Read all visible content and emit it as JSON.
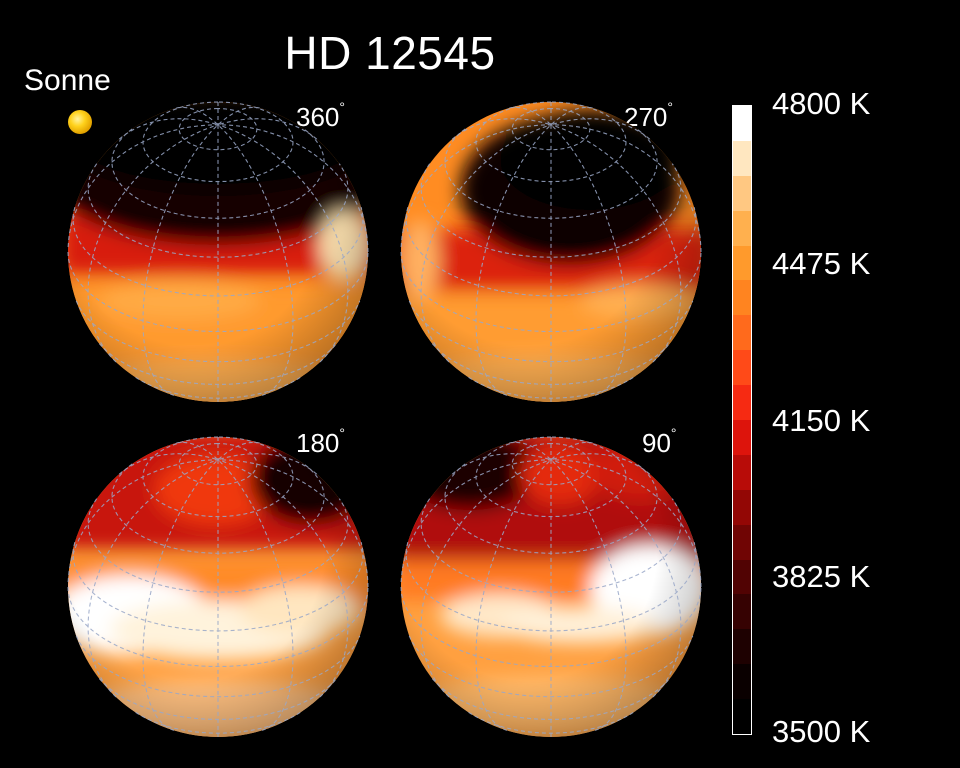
{
  "title": "HD 12545",
  "sun_label": "Sonne",
  "rotation_labels": [
    "360",
    "270",
    "180",
    "90"
  ],
  "degree_symbol": "°",
  "colorbar": {
    "tick_labels": [
      "4800 K",
      "4475 K",
      "4150 K",
      "3825 K",
      "3500 K"
    ],
    "colors_top_to_bottom": [
      "#ffffff",
      "#ffe7c0",
      "#ffc882",
      "#ffb04e",
      "#ff9a2c",
      "#ff8420",
      "#ff6a1c",
      "#ff4a18",
      "#f62a12",
      "#dd140c",
      "#b80c08",
      "#930705",
      "#700504",
      "#510303",
      "#360202",
      "#1e0101",
      "#0a0000",
      "#000000"
    ]
  },
  "colors": {
    "background": "#000000",
    "text": "#ffffff",
    "grid": "#9aa8c8"
  }
}
